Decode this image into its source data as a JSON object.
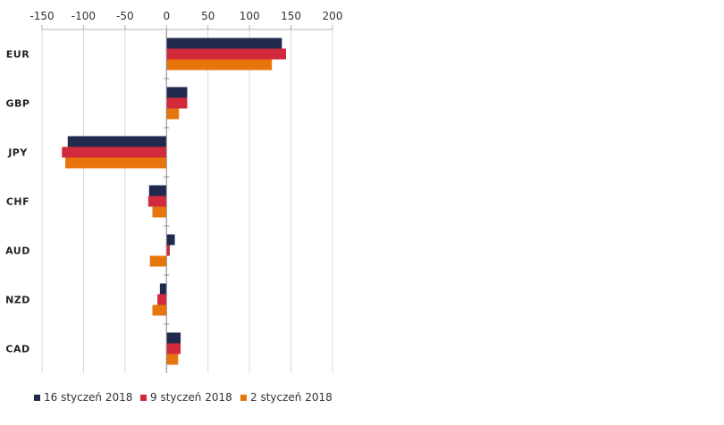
{
  "chart_data": {
    "type": "bar",
    "orientation": "horizontal",
    "categories": [
      "EUR",
      "GBP",
      "JPY",
      "CHF",
      "AUD",
      "NZD",
      "CAD"
    ],
    "series": [
      {
        "name": "16 styczeń 2018",
        "color": "#1f2a4d",
        "values": [
          139,
          25,
          -119,
          -21,
          10,
          -8,
          17
        ]
      },
      {
        "name": "9 styczeń 2018",
        "color": "#d12a3c",
        "values": [
          144,
          25,
          -126,
          -22,
          4,
          -11,
          17
        ]
      },
      {
        "name": "2 styczeń 2018",
        "color": "#e8740c",
        "values": [
          127,
          15,
          -122,
          -17,
          -20,
          -17,
          14
        ]
      }
    ],
    "xticks": [
      "-150",
      "-100",
      "-50",
      "0",
      "50",
      "100",
      "150",
      "200"
    ],
    "xlim": [
      -150,
      200
    ],
    "grid": true,
    "legend": "bottom",
    "title": "",
    "xlabel": "",
    "ylabel": ""
  }
}
